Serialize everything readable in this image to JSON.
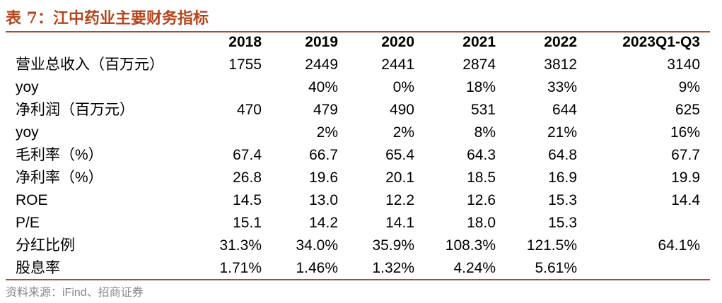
{
  "title": "表 7：江中药业主要财务指标",
  "table": {
    "header": [
      null,
      "2018",
      "2019",
      "2020",
      "2021",
      "2022",
      "2023Q1-Q3"
    ],
    "rows": [
      [
        "营业总收入（百万元）",
        "1755",
        "2449",
        "2441",
        "2874",
        "3812",
        "3140"
      ],
      [
        "yoy",
        null,
        "40%",
        "0%",
        "18%",
        "33%",
        "9%"
      ],
      [
        "净利润（百万元）",
        "470",
        "479",
        "490",
        "531",
        "644",
        "625"
      ],
      [
        "yoy",
        null,
        "2%",
        "2%",
        "8%",
        "21%",
        "16%"
      ],
      [
        "毛利率（%）",
        "67.4",
        "66.7",
        "65.4",
        "64.3",
        "64.8",
        "67.7"
      ],
      [
        "净利率（%）",
        "26.8",
        "19.6",
        "20.1",
        "18.5",
        "16.9",
        "19.9"
      ],
      [
        "ROE",
        "14.5",
        "13.0",
        "12.2",
        "12.6",
        "15.3",
        "14.4"
      ],
      [
        "P/E",
        "15.1",
        "14.2",
        "14.1",
        "18.0",
        "15.3",
        null
      ],
      [
        "分红比例",
        "31.3%",
        "34.0%",
        "35.9%",
        "108.3%",
        "121.5%",
        "64.1%"
      ],
      [
        "股息率",
        "1.71%",
        "1.46%",
        "1.32%",
        "4.24%",
        "5.61%",
        null
      ]
    ]
  },
  "source": "资料来源：iFind、招商证券"
}
